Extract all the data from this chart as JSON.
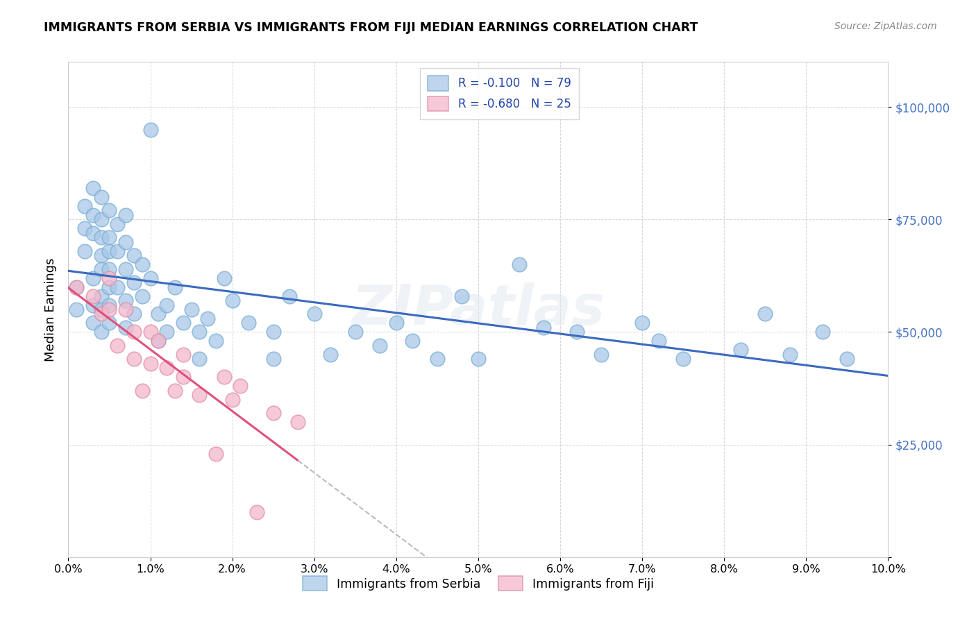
{
  "title": "IMMIGRANTS FROM SERBIA VS IMMIGRANTS FROM FIJI MEDIAN EARNINGS CORRELATION CHART",
  "source": "Source: ZipAtlas.com",
  "ylabel": "Median Earnings",
  "xlim": [
    0.0,
    0.1
  ],
  "ylim": [
    0,
    110000
  ],
  "serbia_color": "#a8c8e8",
  "fiji_color": "#f4b8cc",
  "serbia_edge_color": "#7bafd4",
  "fiji_edge_color": "#e090a8",
  "serbia_line_color": "#3b6abf",
  "fiji_line_color": "#e0507a",
  "fiji_line_dashed_color": "#bbbbbb",
  "right_tick_color": "#4472c4",
  "legend_text_color": "#2244aa",
  "watermark_text": "ZIPatlas",
  "source_text": "Source: ZipAtlas.com",
  "serbia_R": "-0.100",
  "serbia_N": "79",
  "fiji_R": "-0.680",
  "fiji_N": "25",
  "serbia_label": "Immigrants from Serbia",
  "fiji_label": "Immigrants from Fiji",
  "serbia_x": [
    0.001,
    0.001,
    0.002,
    0.002,
    0.002,
    0.003,
    0.003,
    0.003,
    0.003,
    0.003,
    0.003,
    0.004,
    0.004,
    0.004,
    0.004,
    0.004,
    0.004,
    0.004,
    0.004,
    0.005,
    0.005,
    0.005,
    0.005,
    0.005,
    0.005,
    0.005,
    0.006,
    0.006,
    0.006,
    0.007,
    0.007,
    0.007,
    0.007,
    0.007,
    0.008,
    0.008,
    0.008,
    0.009,
    0.009,
    0.01,
    0.01,
    0.011,
    0.011,
    0.012,
    0.012,
    0.013,
    0.014,
    0.015,
    0.016,
    0.016,
    0.017,
    0.018,
    0.019,
    0.02,
    0.022,
    0.025,
    0.025,
    0.027,
    0.03,
    0.032,
    0.035,
    0.038,
    0.04,
    0.042,
    0.045,
    0.048,
    0.05,
    0.055,
    0.058,
    0.062,
    0.065,
    0.07,
    0.072,
    0.075,
    0.082,
    0.085,
    0.088,
    0.092,
    0.095
  ],
  "serbia_y": [
    60000,
    55000,
    73000,
    68000,
    78000,
    82000,
    76000,
    72000,
    62000,
    56000,
    52000,
    80000,
    75000,
    71000,
    67000,
    64000,
    58000,
    55000,
    50000,
    77000,
    71000,
    68000,
    64000,
    60000,
    56000,
    52000,
    74000,
    68000,
    60000,
    76000,
    70000,
    64000,
    57000,
    51000,
    67000,
    61000,
    54000,
    65000,
    58000,
    95000,
    62000,
    54000,
    48000,
    56000,
    50000,
    60000,
    52000,
    55000,
    50000,
    44000,
    53000,
    48000,
    62000,
    57000,
    52000,
    50000,
    44000,
    58000,
    54000,
    45000,
    50000,
    47000,
    52000,
    48000,
    44000,
    58000,
    44000,
    65000,
    51000,
    50000,
    45000,
    52000,
    48000,
    44000,
    46000,
    54000,
    45000,
    50000,
    44000
  ],
  "fiji_x": [
    0.001,
    0.003,
    0.004,
    0.005,
    0.005,
    0.006,
    0.007,
    0.008,
    0.008,
    0.009,
    0.01,
    0.01,
    0.011,
    0.012,
    0.013,
    0.014,
    0.014,
    0.016,
    0.018,
    0.019,
    0.02,
    0.021,
    0.023,
    0.025,
    0.028
  ],
  "fiji_y": [
    60000,
    58000,
    54000,
    62000,
    55000,
    47000,
    55000,
    50000,
    44000,
    37000,
    50000,
    43000,
    48000,
    42000,
    37000,
    45000,
    40000,
    36000,
    23000,
    40000,
    35000,
    38000,
    10000,
    32000,
    30000
  ]
}
